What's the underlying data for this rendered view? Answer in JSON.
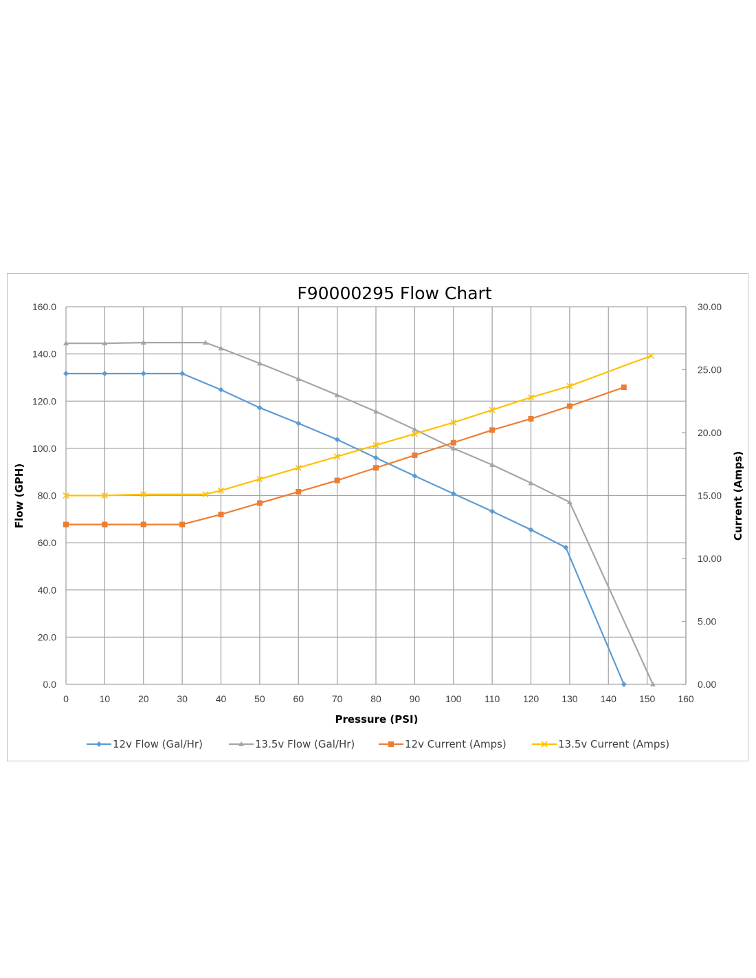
{
  "chart_data": {
    "type": "line",
    "title": "F90000295 Flow Chart",
    "xlabel": "Pressure (PSI)",
    "ylabel": "Flow (GPH)",
    "y2label": "Current (Amps)",
    "xlim": [
      0,
      160
    ],
    "ylim": [
      0,
      160
    ],
    "y2lim": [
      0,
      30
    ],
    "xticks": [
      0,
      10,
      20,
      30,
      40,
      50,
      60,
      70,
      80,
      90,
      100,
      110,
      120,
      130,
      140,
      150,
      160
    ],
    "xtick_labels": [
      "0",
      "10",
      "20",
      "30",
      "40",
      "50",
      "60",
      "70",
      "80",
      "90",
      "100",
      "110",
      "120",
      "130",
      "140",
      "150",
      "160"
    ],
    "yticks": [
      0,
      20,
      40,
      60,
      80,
      100,
      120,
      140,
      160
    ],
    "ytick_labels": [
      "0.0",
      "20.0",
      "40.0",
      "60.0",
      "80.0",
      "100.0",
      "120.0",
      "140.0",
      "160.0"
    ],
    "y2ticks": [
      0,
      5,
      10,
      15,
      20,
      25,
      30
    ],
    "y2tick_labels": [
      "0.00",
      "5.00",
      "10.00",
      "15.00",
      "20.00",
      "25.00",
      "30.00"
    ],
    "grid": true,
    "legend_position": "bottom",
    "series": [
      {
        "name": "12v Flow (Gal/Hr)",
        "axis": "left",
        "color": "#5b9bd5",
        "marker": "diamond",
        "points": [
          [
            0,
            131.7
          ],
          [
            10,
            131.7
          ],
          [
            20,
            131.7
          ],
          [
            30,
            131.7
          ],
          [
            40,
            124.8
          ],
          [
            50,
            117.2
          ],
          [
            60,
            110.6
          ],
          [
            70,
            103.7
          ],
          [
            80,
            96.0
          ],
          [
            90,
            88.3
          ],
          [
            100,
            80.8
          ],
          [
            110,
            73.3
          ],
          [
            120,
            65.5
          ],
          [
            129,
            58.0
          ],
          [
            144,
            0.0
          ]
        ]
      },
      {
        "name": "13.5v Flow (Gal/Hr)",
        "axis": "left",
        "color": "#a5a5a5",
        "marker": "triangle",
        "points": [
          [
            0,
            144.5
          ],
          [
            10,
            144.5
          ],
          [
            20,
            144.8
          ],
          [
            36,
            144.8
          ],
          [
            40,
            142.4
          ],
          [
            50,
            136.0
          ],
          [
            60,
            129.4
          ],
          [
            70,
            122.6
          ],
          [
            80,
            115.6
          ],
          [
            90,
            108.0
          ],
          [
            100,
            100.0
          ],
          [
            110,
            93.0
          ],
          [
            120,
            85.3
          ],
          [
            130,
            77.2
          ],
          [
            151.5,
            0.0
          ]
        ]
      },
      {
        "name": "12v Current (Amps)",
        "axis": "right",
        "color": "#ed7d31",
        "marker": "square",
        "points": [
          [
            0,
            12.7
          ],
          [
            10,
            12.7
          ],
          [
            20,
            12.7
          ],
          [
            30,
            12.7
          ],
          [
            40,
            13.5
          ],
          [
            50,
            14.4
          ],
          [
            60,
            15.3
          ],
          [
            70,
            16.2
          ],
          [
            80,
            17.2
          ],
          [
            90,
            18.2
          ],
          [
            100,
            19.2
          ],
          [
            110,
            20.2
          ],
          [
            120,
            21.1
          ],
          [
            130,
            22.1
          ],
          [
            144,
            23.6
          ]
        ]
      },
      {
        "name": "13.5v Current (Amps)",
        "axis": "right",
        "color": "#ffc000",
        "marker": "x",
        "points": [
          [
            0,
            15.0
          ],
          [
            10,
            15.0
          ],
          [
            20,
            15.1
          ],
          [
            36,
            15.1
          ],
          [
            40,
            15.4
          ],
          [
            50,
            16.3
          ],
          [
            60,
            17.2
          ],
          [
            70,
            18.1
          ],
          [
            80,
            19.0
          ],
          [
            90,
            19.9
          ],
          [
            100,
            20.8
          ],
          [
            110,
            21.8
          ],
          [
            120,
            22.8
          ],
          [
            130,
            23.7
          ],
          [
            151,
            26.1
          ]
        ]
      }
    ]
  }
}
